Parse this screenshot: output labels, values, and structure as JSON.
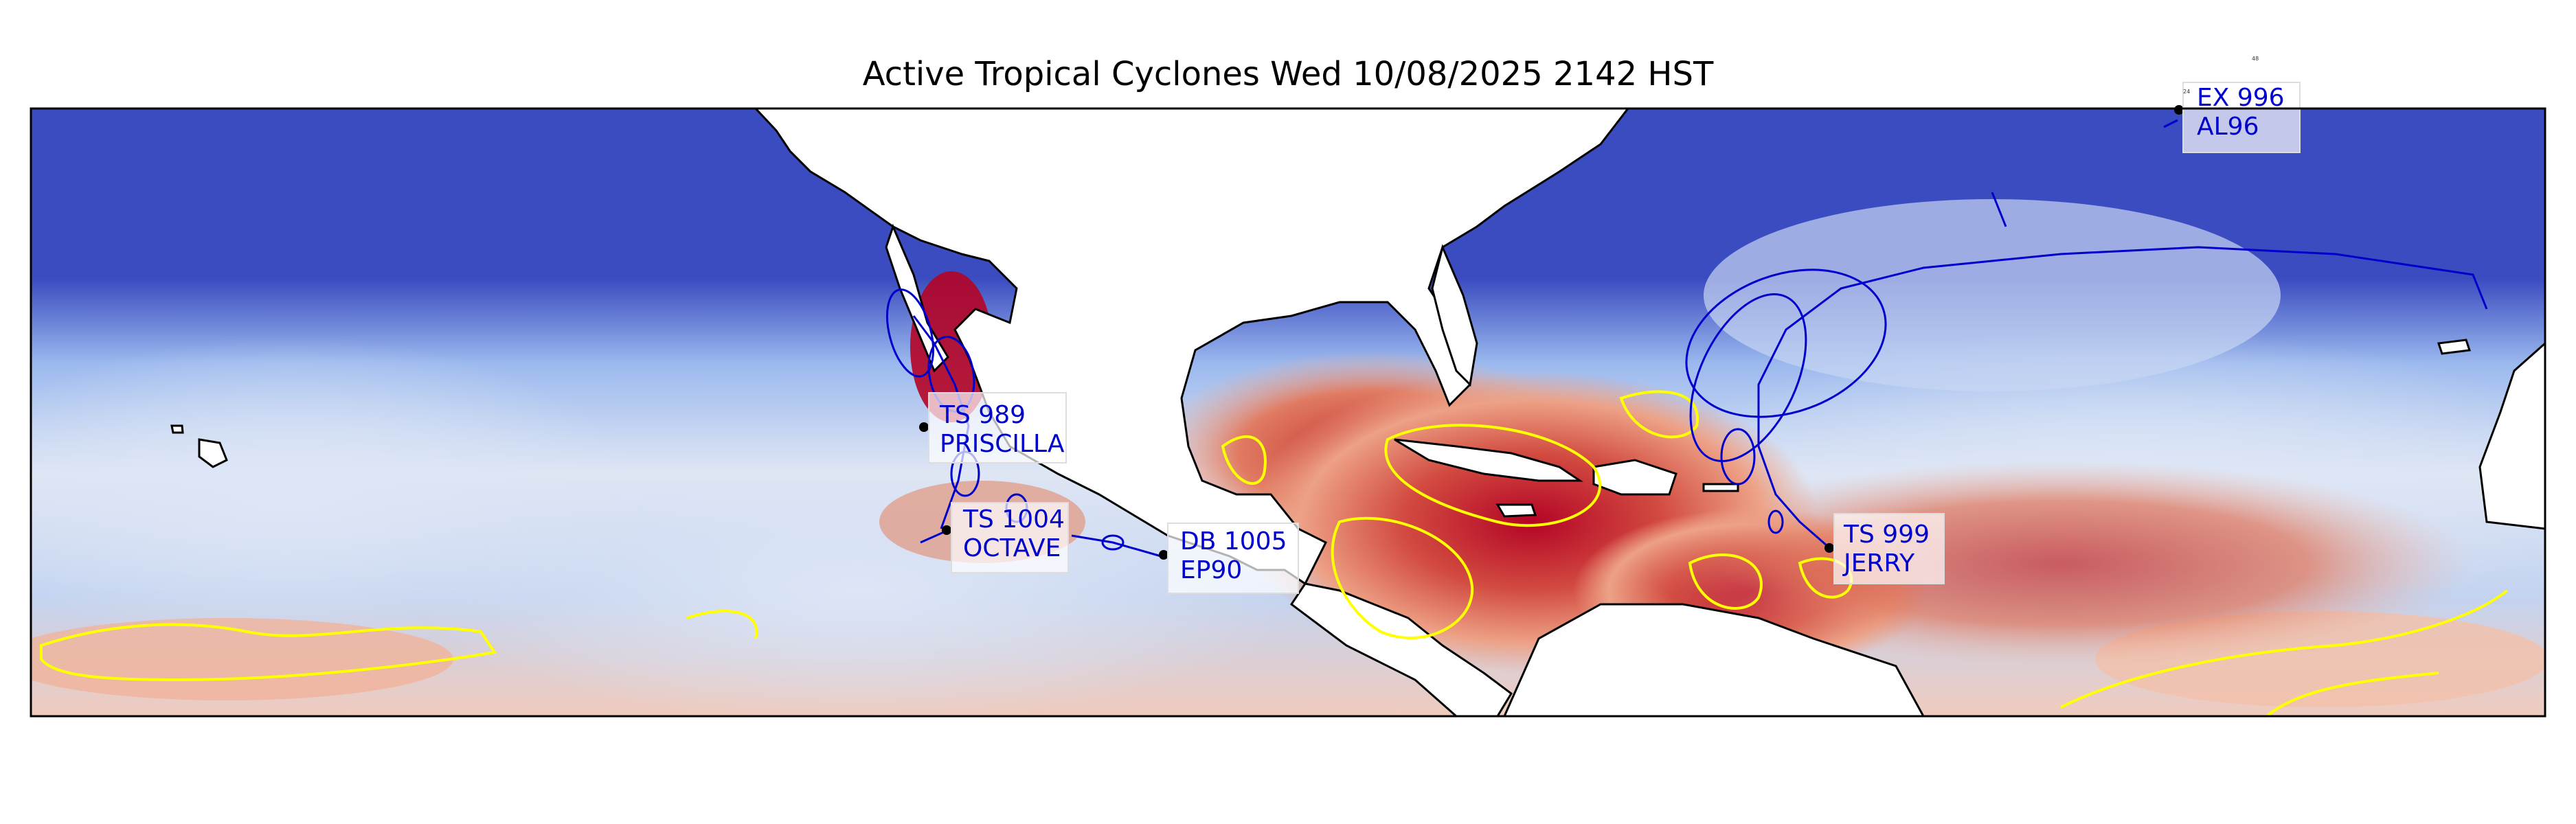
{
  "title": "Active Tropical Cyclones Wed 10/08/2025 2142 HST",
  "colors": {
    "ocean_cold": "#3b4cc0",
    "ocean_cool": "#a9c6f0",
    "ocean_neutral": "#e6ecf5",
    "ocean_warm": "#e0816a",
    "ocean_hot": "#b40426",
    "land": "#ffffff",
    "coast": "#000000",
    "contour_yellow": "#ffff00",
    "track_blue": "#0000cc",
    "label_text": "#0000cc"
  },
  "storms": [
    {
      "id": "ex996",
      "line1": "EX 996",
      "line2": "AL96"
    },
    {
      "id": "ts989",
      "line1": "TS 989",
      "line2": "PRISCILLA"
    },
    {
      "id": "ts1004",
      "line1": "TS 1004",
      "line2": "OCTAVE"
    },
    {
      "id": "db1005",
      "line1": "DB 1005",
      "line2": "EP90"
    },
    {
      "id": "ts999",
      "line1": "TS 999",
      "line2": "JERRY"
    }
  ],
  "small_marks": {
    "a": "24",
    "b": "48"
  }
}
